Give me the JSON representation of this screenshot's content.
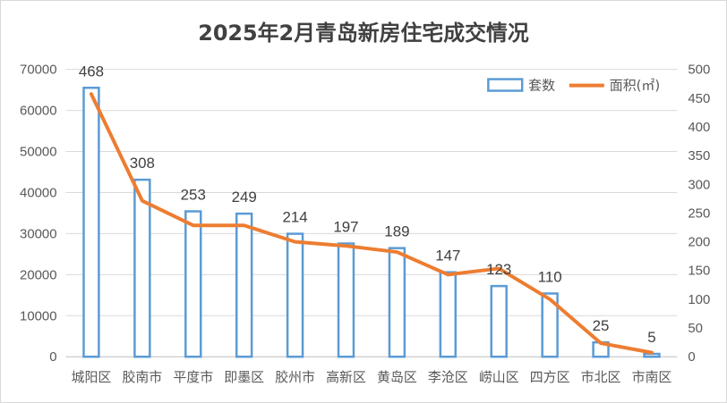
{
  "chart_data": {
    "type": "bar",
    "title": "2025年2月青岛新房住宅成交情况",
    "categories": [
      "城阳区",
      "胶南市",
      "平度市",
      "即墨区",
      "胶州市",
      "高新区",
      "黄岛区",
      "李沧区",
      "崂山区",
      "四方区",
      "市北区",
      "市南区"
    ],
    "series": [
      {
        "name": "套数",
        "type": "bar",
        "axis": "right",
        "values": [
          468,
          308,
          253,
          249,
          214,
          197,
          189,
          147,
          123,
          110,
          25,
          5
        ],
        "data_labels": [
          "468",
          "308",
          "253",
          "249",
          "214",
          "197",
          "189",
          "147",
          "123",
          "110",
          "25",
          "5"
        ],
        "color": "#5b9bd5"
      },
      {
        "name": "面积(㎡)",
        "type": "line",
        "axis": "left",
        "values": [
          64000,
          38000,
          32000,
          32000,
          28000,
          27000,
          25500,
          20000,
          21500,
          14000,
          3300,
          1000
        ],
        "color": "#ed7d31"
      }
    ],
    "left_axis": {
      "min": 0,
      "max": 70000,
      "step": 10000,
      "tick_labels": [
        "0",
        "10000",
        "20000",
        "30000",
        "40000",
        "50000",
        "60000",
        "70000"
      ]
    },
    "right_axis": {
      "min": 0,
      "max": 500,
      "step": 50,
      "tick_labels": [
        "0",
        "50",
        "100",
        "150",
        "200",
        "250",
        "300",
        "350",
        "400",
        "450",
        "500"
      ]
    },
    "grid": true,
    "legend_position": "top-right"
  }
}
